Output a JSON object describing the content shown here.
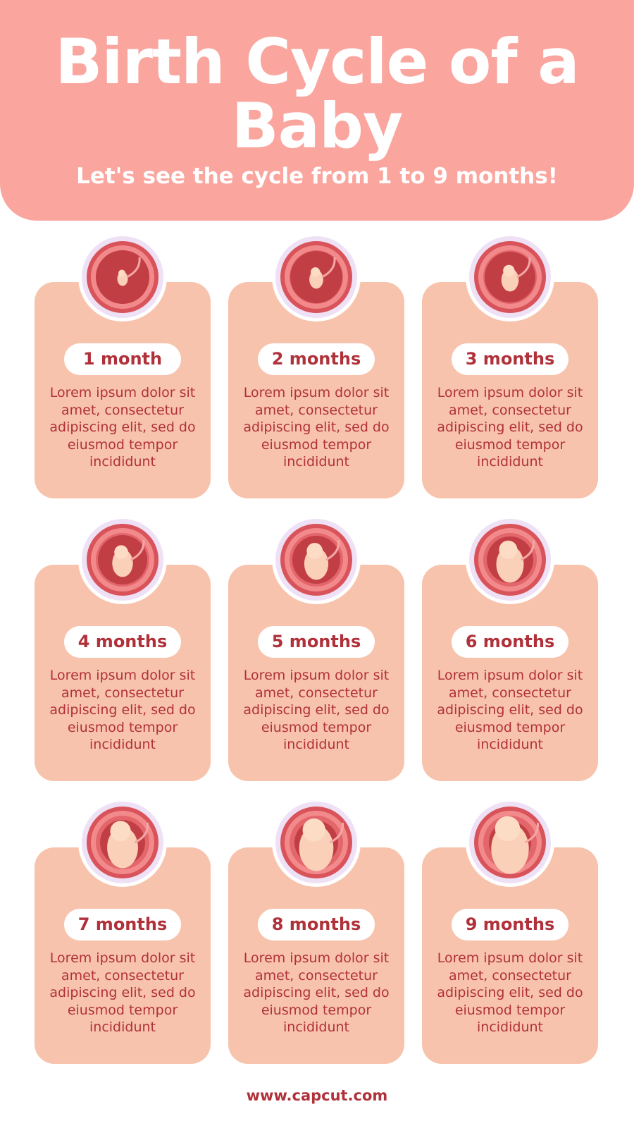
{
  "header": {
    "title_line1": "Birth Cycle of a",
    "title_line2": "Baby",
    "subtitle": "Let's see the cycle from 1 to 9 months!"
  },
  "colors": {
    "header_bg": "#FAA69F",
    "card_bg": "#F8C3AC",
    "text_accent": "#B0313A",
    "ring": "#EFE1F5"
  },
  "stages": [
    {
      "label": "1 month",
      "description": "Lorem ipsum dolor sit amet, consectetur adipiscing elit, sed do eiusmod tempor incididunt",
      "icon": "fetus-1-month-icon"
    },
    {
      "label": "2 months",
      "description": "Lorem ipsum dolor sit amet, consectetur adipiscing elit, sed do eiusmod tempor incididunt",
      "icon": "fetus-2-months-icon"
    },
    {
      "label": "3 months",
      "description": "Lorem ipsum dolor sit amet, consectetur adipiscing elit, sed do eiusmod tempor incididunt",
      "icon": "fetus-3-months-icon"
    },
    {
      "label": "4 months",
      "description": "Lorem ipsum dolor sit amet, consectetur adipiscing elit, sed do eiusmod tempor incididunt",
      "icon": "fetus-4-months-icon"
    },
    {
      "label": "5 months",
      "description": "Lorem ipsum dolor sit amet, consectetur adipiscing elit, sed do eiusmod tempor incididunt",
      "icon": "fetus-5-months-icon"
    },
    {
      "label": "6 months",
      "description": "Lorem ipsum dolor sit amet, consectetur adipiscing elit, sed do eiusmod tempor incididunt",
      "icon": "fetus-6-months-icon"
    },
    {
      "label": "7 months",
      "description": "Lorem ipsum dolor sit amet, consectetur adipiscing elit, sed do eiusmod tempor incididunt",
      "icon": "fetus-7-months-icon"
    },
    {
      "label": "8 months",
      "description": "Lorem ipsum dolor sit amet, consectetur adipiscing elit, sed do eiusmod tempor incididunt",
      "icon": "fetus-8-months-icon"
    },
    {
      "label": "9 months",
      "description": "Lorem ipsum dolor sit amet, consectetur adipiscing elit, sed do eiusmod tempor incididunt",
      "icon": "fetus-9-months-icon"
    }
  ],
  "footer": {
    "url": "www.capcut.com"
  }
}
